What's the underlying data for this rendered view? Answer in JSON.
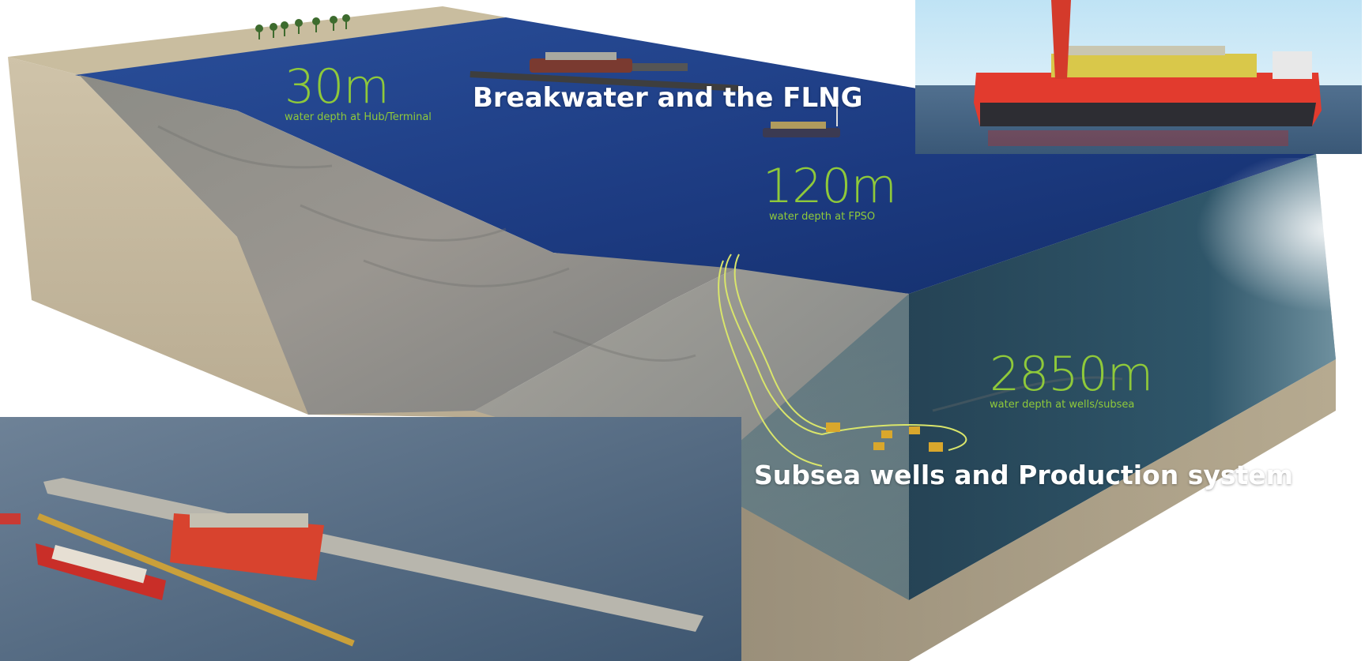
{
  "labels": {
    "hub_depth": {
      "value": "30m",
      "caption": "water depth at Hub/Terminal"
    },
    "fpso_depth": {
      "value": "120m",
      "caption": "water depth at FPSO"
    },
    "wells_depth": {
      "value": "2850m",
      "caption": "water depth at wells/subsea"
    }
  },
  "headlines": {
    "breakwater": "Breakwater and the FLNG",
    "subsea": "Subsea wells and Production system"
  },
  "colors": {
    "depth_label": "#8fc93a",
    "headline": "#ffffff",
    "ocean_surface": "#1f3f86",
    "deep_water": "#0f3a52",
    "sand": "#cbbfa6",
    "flowline": "#d9e56b",
    "vessel_hull": "#e23b2e"
  },
  "icons": {
    "palm_trees": "palm-tree-icon",
    "flng_vessel": "flng-vessel-icon",
    "fpso_vessel": "fpso-vessel-icon",
    "lng_carrier": "lng-carrier-icon",
    "subsea_wells": "subsea-well-icon"
  }
}
